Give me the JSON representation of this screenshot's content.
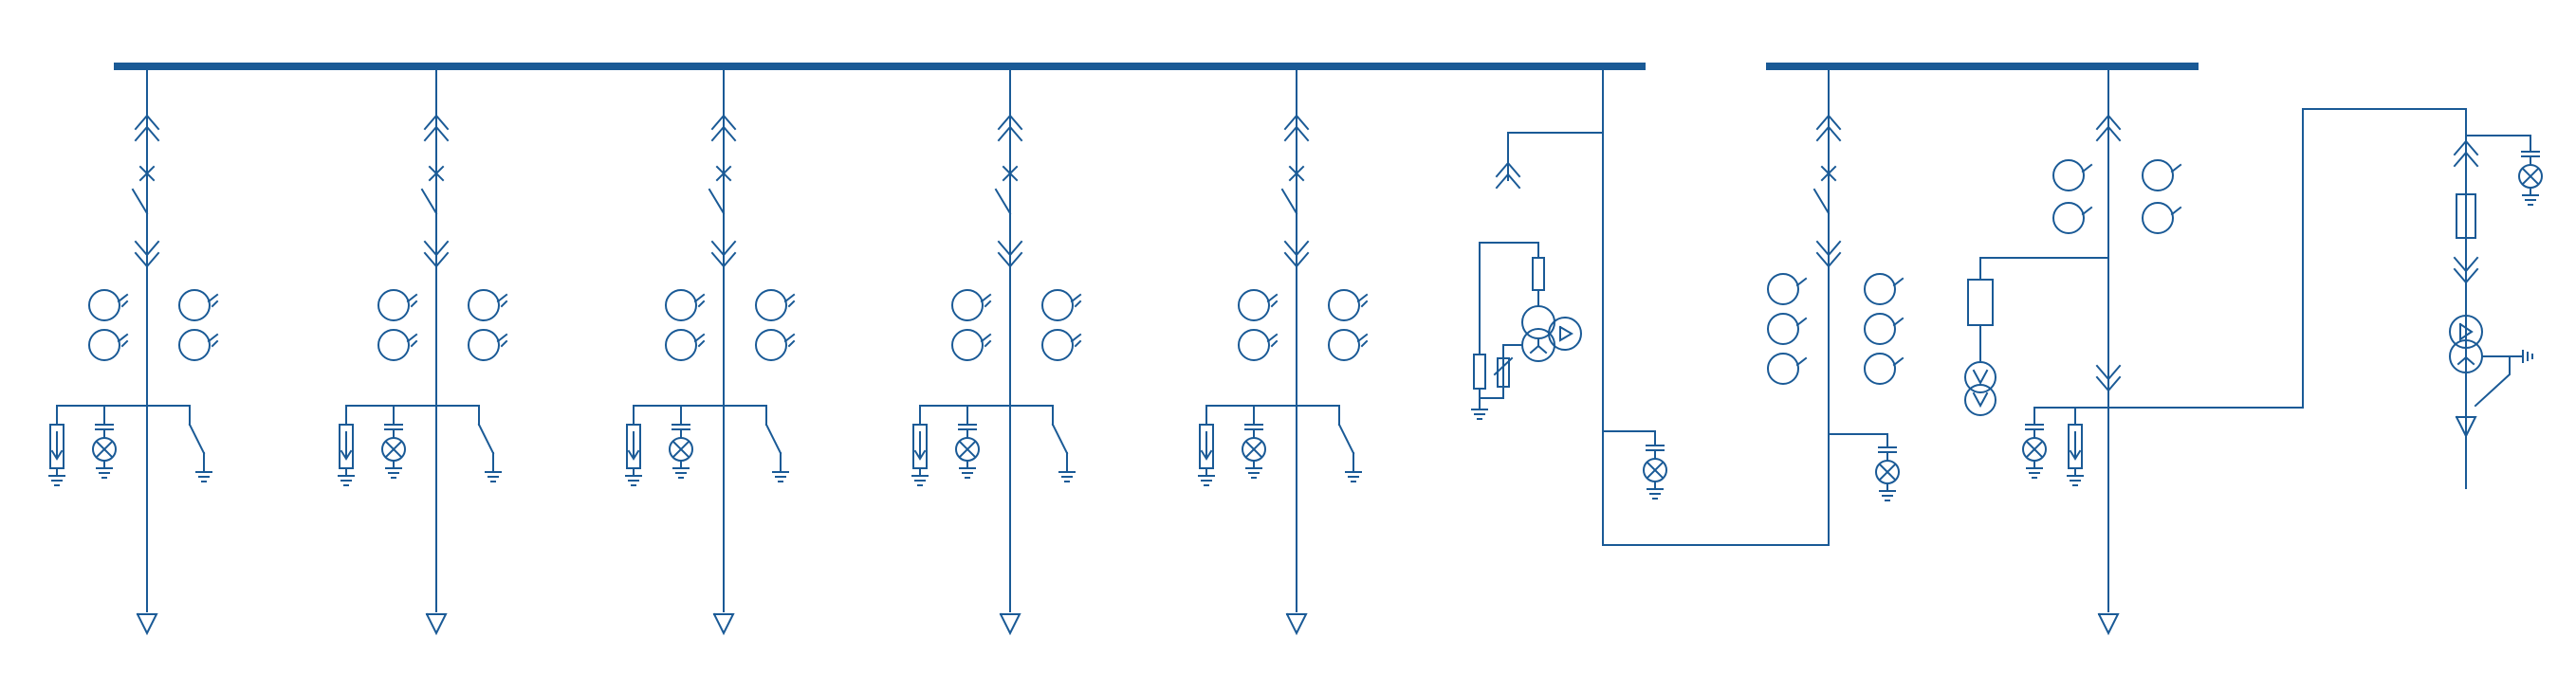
{
  "diagram": {
    "type": "single-line-switchgear",
    "line_color": "#1a5a96",
    "background": "#ffffff",
    "busbar_sections": 2,
    "symbols": [
      "withdrawable-contact-icon",
      "circuit-breaker-icon",
      "disconnector-icon",
      "current-transformer-icon",
      "surge-arrester-icon",
      "capacitive-voltage-indicator-icon",
      "earthing-switch-icon",
      "fuse-icon",
      "voltage-transformer-icon",
      "cable-terminal-icon"
    ],
    "feeders": [
      {
        "kind": "outgoing-feeder"
      },
      {
        "kind": "outgoing-feeder"
      },
      {
        "kind": "outgoing-feeder"
      },
      {
        "kind": "outgoing-feeder"
      },
      {
        "kind": "outgoing-feeder"
      },
      {
        "kind": "metering"
      },
      {
        "kind": "bus-riser"
      },
      {
        "kind": "bus-section"
      },
      {
        "kind": "auxiliary-transformer"
      }
    ]
  }
}
